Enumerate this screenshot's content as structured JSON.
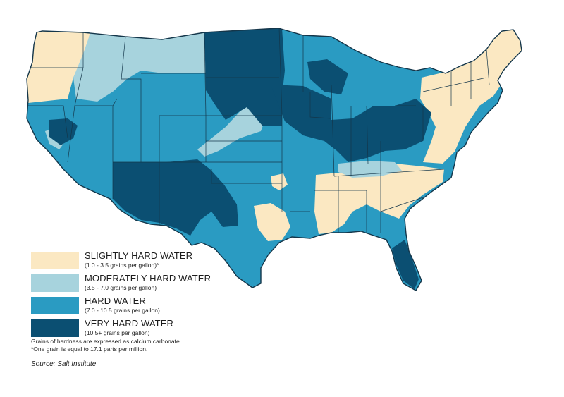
{
  "colors": {
    "slightly_hard": "#fbe8c2",
    "moderately_hard": "#a7d3dd",
    "hard": "#2a9bc2",
    "very_hard": "#0b4f72",
    "border": "#14364a"
  },
  "legend": [
    {
      "label": "SLIGHTLY HARD WATER",
      "range": "(1.0 - 3.5 grains per gallon)*",
      "color_key": "slightly_hard"
    },
    {
      "label": "MODERATELY HARD WATER",
      "range": "(3.5 - 7.0 grains per gallon)",
      "color_key": "moderately_hard"
    },
    {
      "label": "HARD WATER",
      "range": "(7.0 - 10.5 grains per gallon)",
      "color_key": "hard"
    },
    {
      "label": "VERY HARD WATER",
      "range": "(10.5+ grains per gallon)",
      "color_key": "very_hard"
    }
  ],
  "notes": {
    "line1": "Grains of hardness are expressed as calcium carbonate.",
    "line2": "*One grain is equal to 17.1 parts per million."
  },
  "source": "Source: Salt Institute"
}
